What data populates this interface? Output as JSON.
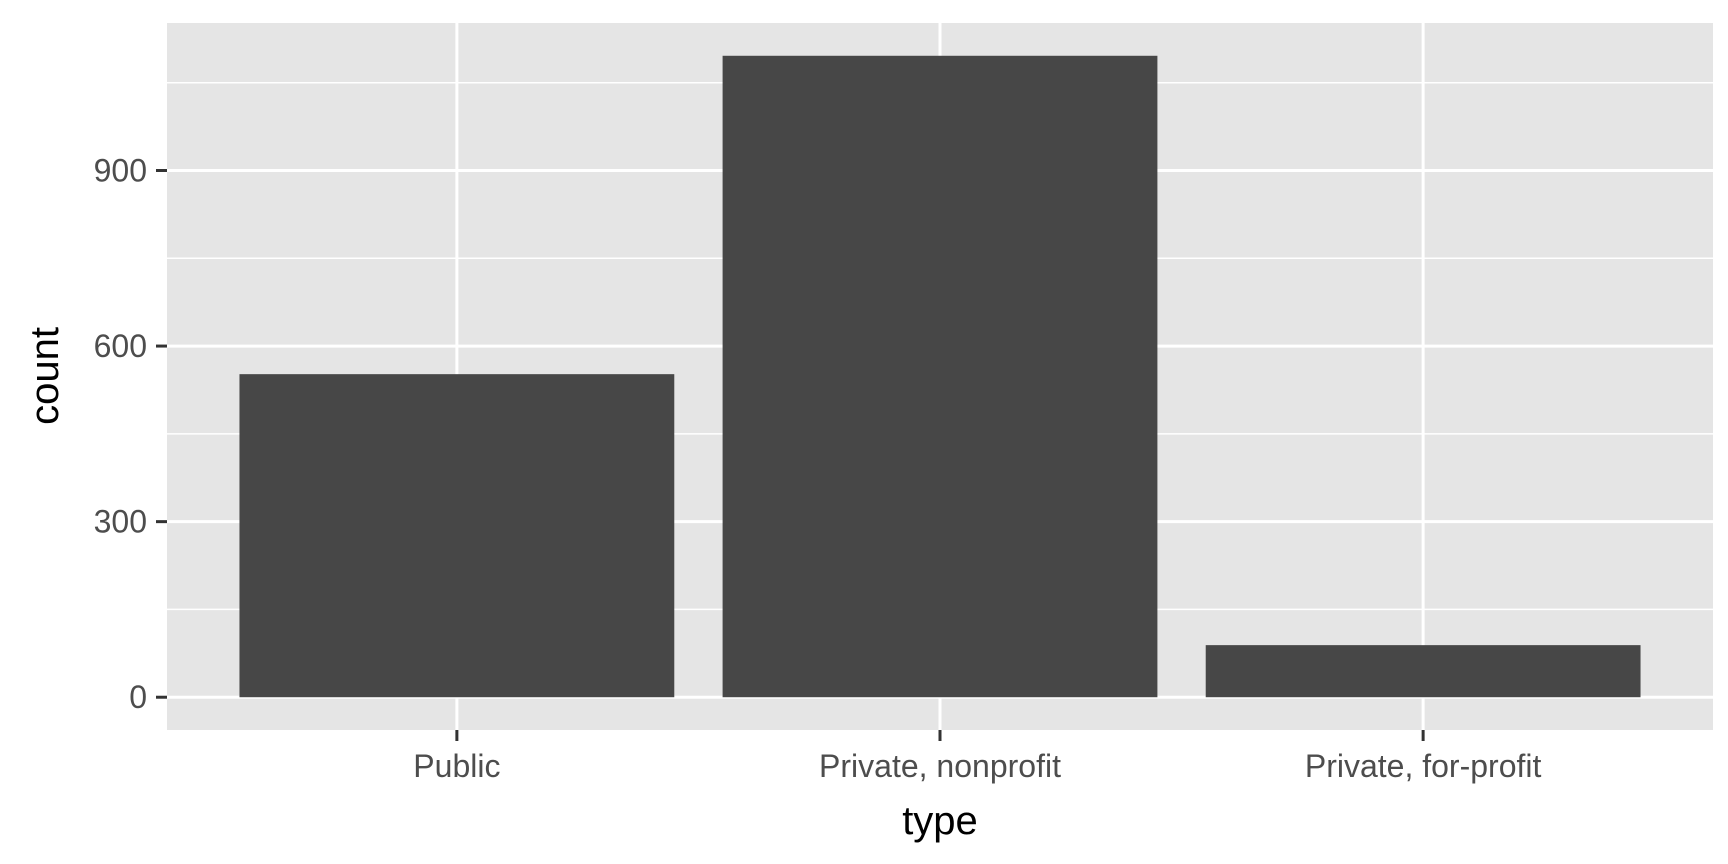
{
  "chart_data": {
    "type": "bar",
    "title": "",
    "xlabel": "type",
    "ylabel": "count",
    "categories": [
      "Public",
      "Private, nonprofit",
      "Private, for-profit"
    ],
    "values": [
      552,
      1096,
      89
    ],
    "ylim": [
      -56,
      1152
    ],
    "yticks": [
      0,
      300,
      600,
      900
    ],
    "yticks_minor": [
      150,
      450,
      750,
      1050
    ],
    "grid": true,
    "legend": "none",
    "colors": {
      "panel": "#e5e5e5",
      "grid": "#ffffff",
      "bar": "#474747",
      "tick": "#333333"
    }
  }
}
